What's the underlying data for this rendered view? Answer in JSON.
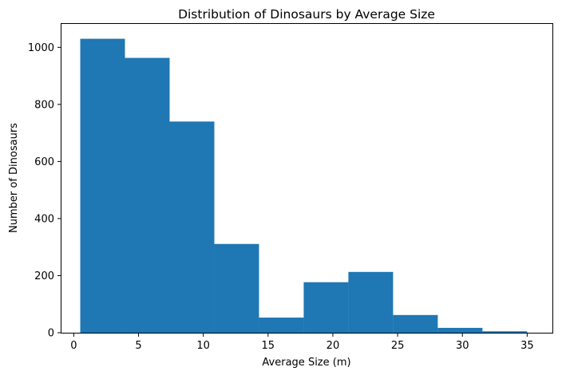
{
  "chart_data": {
    "type": "bar",
    "subtype": "histogram",
    "title": "Distribution of Dinosaurs by Average Size",
    "xlabel": "Average Size (m)",
    "ylabel": "Number of Dinosaurs",
    "xlim": [
      -0.95,
      36.95
    ],
    "ylim": [
      0,
      1082
    ],
    "x_ticks": [
      0,
      5,
      10,
      15,
      20,
      25,
      30,
      35
    ],
    "y_ticks": [
      0,
      200,
      400,
      600,
      800,
      1000
    ],
    "bins": [
      {
        "start": 0.5,
        "end": 3.95,
        "value": 1030
      },
      {
        "start": 3.95,
        "end": 7.4,
        "value": 963
      },
      {
        "start": 7.4,
        "end": 10.85,
        "value": 740
      },
      {
        "start": 10.85,
        "end": 14.3,
        "value": 311
      },
      {
        "start": 14.3,
        "end": 17.75,
        "value": 53
      },
      {
        "start": 17.75,
        "end": 21.2,
        "value": 177
      },
      {
        "start": 21.2,
        "end": 24.65,
        "value": 213
      },
      {
        "start": 24.65,
        "end": 28.1,
        "value": 62
      },
      {
        "start": 28.1,
        "end": 31.55,
        "value": 17
      },
      {
        "start": 31.55,
        "end": 35.0,
        "value": 5
      }
    ],
    "bar_color": "#1f77b4",
    "grid": false,
    "legend": "none"
  }
}
